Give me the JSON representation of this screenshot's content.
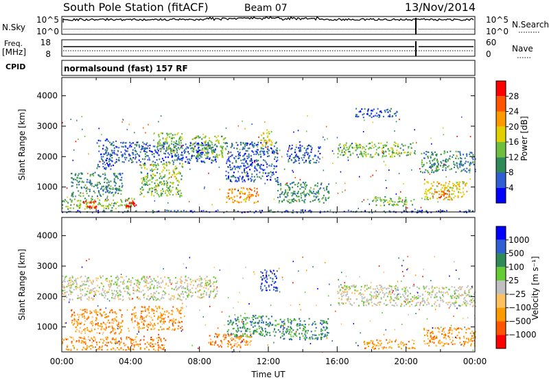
{
  "header": {
    "title": "South Pole Station (fitACF)",
    "beam": "Beam 07",
    "date": "13/Nov/2014"
  },
  "strips": {
    "nsky_label": "N.Sky",
    "nsky_ticks": [
      "10^5",
      "10^0"
    ],
    "nsearch_label": "N.Search",
    "nsearch_ticks": [
      "10^5",
      "10^0"
    ],
    "freq_label": "Freq.",
    "freq_unit": "[MHz]",
    "freq_ticks": [
      "18",
      "8"
    ],
    "nave_label": "Nave",
    "nave_ticks": [
      "60",
      "0"
    ],
    "cpid_label": "CPID",
    "cpid_value": "normalsound (fast) 157 RF"
  },
  "chart_data": [
    {
      "type": "heatmap",
      "ylabel": "Slant Range [km]",
      "xlabel": "",
      "ylim": [
        180,
        4600
      ],
      "yticks": [
        "4000",
        "3000",
        "2000",
        "1000"
      ],
      "colorbar_label": "Power [dB]",
      "colorbar_ticks": [
        "28",
        "24",
        "20",
        "16",
        "12",
        "8",
        "4"
      ],
      "colorbar_colors": [
        "#0000ff",
        "#2f5fd0",
        "#2e8b57",
        "#6fbf3f",
        "#e0d000",
        "#ff9900",
        "#ff5500",
        "#ff0000"
      ],
      "bands": [
        {
          "t0": 0.0,
          "t1": 4.2,
          "r0": 300,
          "r1": 650,
          "c": 3
        },
        {
          "t0": 1.2,
          "t1": 2.0,
          "r0": 320,
          "r1": 560,
          "c": 7
        },
        {
          "t0": 3.7,
          "t1": 4.3,
          "r0": 350,
          "r1": 600,
          "c": 7
        },
        {
          "t0": 0.5,
          "t1": 3.5,
          "r0": 700,
          "r1": 1500,
          "c": 2
        },
        {
          "t0": 2.0,
          "t1": 3.0,
          "r0": 1600,
          "r1": 2600,
          "c": 1
        },
        {
          "t0": 3.0,
          "t1": 9.0,
          "r0": 1800,
          "r1": 2500,
          "c": 1
        },
        {
          "t0": 4.5,
          "t1": 7.0,
          "r0": 700,
          "r1": 1800,
          "c": 3
        },
        {
          "t0": 5.5,
          "t1": 7.0,
          "r0": 2100,
          "r1": 2800,
          "c": 3
        },
        {
          "t0": 7.5,
          "t1": 9.5,
          "r0": 2000,
          "r1": 2700,
          "c": 3
        },
        {
          "t0": 9.5,
          "t1": 11.5,
          "r0": 500,
          "r1": 1000,
          "c": 5
        },
        {
          "t0": 9.5,
          "t1": 12.5,
          "r0": 1200,
          "r1": 2500,
          "c": 1
        },
        {
          "t0": 11.5,
          "t1": 12.2,
          "r0": 2300,
          "r1": 2900,
          "c": 4
        },
        {
          "t0": 12.5,
          "t1": 15.5,
          "r0": 500,
          "r1": 1200,
          "c": 2
        },
        {
          "t0": 13.0,
          "t1": 15.0,
          "r0": 1800,
          "r1": 2400,
          "c": 1
        },
        {
          "t0": 16.0,
          "t1": 20.5,
          "r0": 2000,
          "r1": 2500,
          "c": 3
        },
        {
          "t0": 17.0,
          "t1": 19.5,
          "r0": 3300,
          "r1": 3600,
          "c": 1
        },
        {
          "t0": 18.0,
          "t1": 20.5,
          "r0": 400,
          "r1": 700,
          "c": 3
        },
        {
          "t0": 20.8,
          "t1": 24.0,
          "r0": 1500,
          "r1": 2200,
          "c": 2
        },
        {
          "t0": 21.0,
          "t1": 23.5,
          "r0": 600,
          "r1": 1200,
          "c": 4
        },
        {
          "t0": 21.5,
          "t1": 22.5,
          "r0": 650,
          "r1": 900,
          "c": 6
        },
        {
          "t0": 0.0,
          "t1": 24.0,
          "r0": 180,
          "r1": 260,
          "c": 1
        }
      ]
    },
    {
      "type": "heatmap",
      "ylabel": "Slant Range [km]",
      "xlabel": "Time UT",
      "ylim": [
        180,
        4600
      ],
      "yticks": [
        "4000",
        "3000",
        "2000",
        "1000"
      ],
      "xticks": [
        "00:00",
        "04:00",
        "08:00",
        "12:00",
        "16:00",
        "20:00",
        "00:00"
      ],
      "colorbar_label": "Velocity [m s⁻¹]",
      "colorbar_ticks": [
        "1000",
        "500",
        "100",
        "25",
        "−25",
        "−100",
        "−500",
        "−1000"
      ],
      "colorbar_colors": [
        "#ff0000",
        "#ff5500",
        "#ff9900",
        "#ffc060",
        "#c0c0c0",
        "#66cc33",
        "#2e8b57",
        "#2f5fd0",
        "#0000ff"
      ],
      "bands": [
        {
          "t0": 0.0,
          "t1": 6.0,
          "r0": 250,
          "r1": 700,
          "c": 2
        },
        {
          "t0": 0.5,
          "t1": 3.5,
          "r0": 800,
          "r1": 1600,
          "c": 2
        },
        {
          "t0": 4.0,
          "t1": 7.0,
          "r0": 900,
          "r1": 1700,
          "c": 2
        },
        {
          "t0": 0.0,
          "t1": 9.0,
          "r0": 1900,
          "r1": 2700,
          "c": 4
        },
        {
          "t0": 8.5,
          "t1": 11.0,
          "r0": 300,
          "r1": 800,
          "c": 2
        },
        {
          "t0": 9.5,
          "t1": 12.5,
          "r0": 700,
          "r1": 1400,
          "c": 6
        },
        {
          "t0": 11.5,
          "t1": 12.5,
          "r0": 2200,
          "r1": 2900,
          "c": 7
        },
        {
          "t0": 12.5,
          "t1": 15.5,
          "r0": 600,
          "r1": 1300,
          "c": 6
        },
        {
          "t0": 16.0,
          "t1": 24.0,
          "r0": 1700,
          "r1": 2400,
          "c": 4
        },
        {
          "t0": 17.5,
          "t1": 20.5,
          "r0": 300,
          "r1": 600,
          "c": 2
        },
        {
          "t0": 21.0,
          "t1": 24.0,
          "r0": 400,
          "r1": 1000,
          "c": 2
        }
      ]
    }
  ]
}
